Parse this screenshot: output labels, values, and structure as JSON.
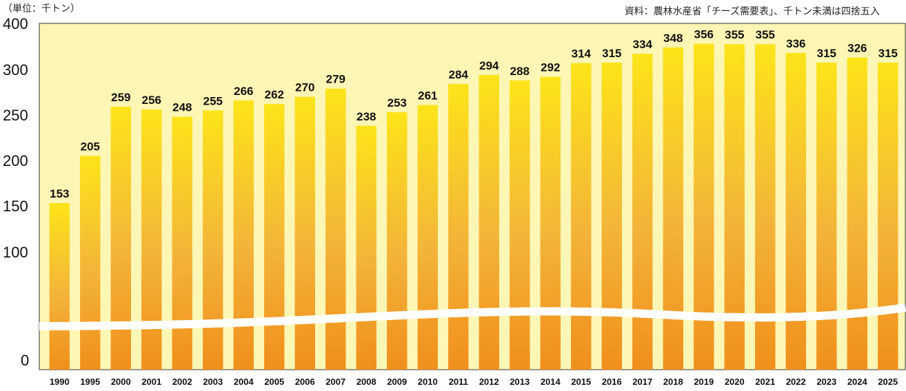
{
  "header": {
    "unit": "（単位：千トン）",
    "source": "資料：農林水産省「チーズ需要表」、千トン未満は四捨五入"
  },
  "colors": {
    "plot_background": "#fdf6b4",
    "bar_top": "#fde41a",
    "bar_bottom": "#f08f1c",
    "axis_break_wave": "#ffffff"
  },
  "chart_data": {
    "type": "bar",
    "title": "",
    "xlabel": "",
    "ylabel": "",
    "categories": [
      "1990",
      "1995",
      "2000",
      "2001",
      "2002",
      "2003",
      "2004",
      "2005",
      "2006",
      "2007",
      "2008",
      "2009",
      "2010",
      "2011",
      "2012",
      "2013",
      "2014",
      "2015",
      "2016",
      "2017",
      "2018",
      "2019",
      "2020",
      "2021",
      "2022",
      "2023",
      "2024",
      "2025"
    ],
    "values": [
      153,
      205,
      259,
      256,
      248,
      255,
      266,
      262,
      270,
      279,
      238,
      253,
      261,
      284,
      294,
      288,
      292,
      314,
      315,
      334,
      348,
      356,
      355,
      355,
      336,
      315,
      326,
      315
    ],
    "data_labels": [
      "153",
      "205",
      "259",
      "256",
      "248",
      "255",
      "266",
      "262",
      "270",
      "279",
      "238",
      "253",
      "261",
      "284",
      "294",
      "288",
      "292",
      "314",
      "315",
      "334",
      "348",
      "356",
      "355",
      "355",
      "336",
      "315",
      "326",
      "315"
    ],
    "y_ticks": [
      "0",
      "100",
      "150",
      "200",
      "250",
      "300",
      "400"
    ],
    "ylim": [
      0,
      400
    ],
    "axis_break": true,
    "grid": false,
    "legend": "none"
  }
}
